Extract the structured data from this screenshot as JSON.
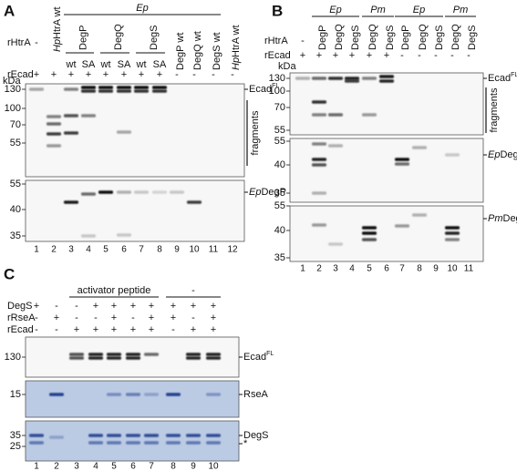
{
  "panels": [
    {
      "label": "A",
      "headers": [
        "Ep"
      ],
      "groups": [
        "DegP",
        "DegQ",
        "DegS"
      ],
      "rows": [
        {
          "name": "rHtrA",
          "values": [
            "-",
            {
              "italic": "Hp",
              "text": "HtrA wt"
            },
            "wt",
            "SA",
            "wt",
            "SA",
            "wt",
            "SA",
            "DegP wt",
            "DegQ wt",
            "DegS wt",
            {
              "italic": "Hp",
              "text": "HtrA wt"
            }
          ]
        },
        {
          "name": "rEcad",
          "values": [
            "+",
            "+",
            "+",
            "+",
            "+",
            "+",
            "+",
            "+",
            "-",
            "-",
            "-",
            "-"
          ]
        }
      ],
      "unit": "kDa",
      "blots": [
        {
          "markers": [
            130,
            100,
            70,
            55
          ],
          "labels": [
            {
              "text": "Ecad",
              "superscript": "FL"
            },
            "fragments"
          ]
        },
        {
          "markers": [
            55,
            40,
            35
          ],
          "labels": [
            {
              "italic": "Ep",
              "text": "DegP"
            }
          ]
        }
      ],
      "lanes": [
        1,
        2,
        3,
        4,
        5,
        6,
        7,
        8,
        9,
        10,
        11,
        12
      ]
    },
    {
      "label": "B",
      "headers": [
        "Ep",
        "Pm",
        "Ep",
        "Pm"
      ],
      "groups": [],
      "rows": [
        {
          "name": "rHtrA",
          "values": [
            "-",
            "DegP",
            "DegQ",
            "DegS",
            "DegQ",
            "DegS",
            "DegP",
            "DegQ",
            "DegS",
            "DegQ",
            "DegS"
          ]
        },
        {
          "name": "rEcad",
          "values": [
            "+",
            "+",
            "+",
            "+",
            "+",
            "+",
            "-",
            "-",
            "-",
            "-",
            "-"
          ]
        }
      ],
      "unit": "kDa",
      "blots": [
        {
          "markers": [
            130,
            100,
            70,
            55
          ],
          "labels": [
            {
              "text": "Ecad",
              "superscript": "FL"
            },
            "fragments"
          ]
        },
        {
          "markers": [
            55,
            40,
            35
          ],
          "labels": [
            {
              "italic": "Ep",
              "text": "DegP"
            }
          ]
        },
        {
          "markers": [
            55,
            40,
            35
          ],
          "labels": [
            {
              "italic": "Pm",
              "text": "DegQ"
            }
          ]
        }
      ],
      "lanes": [
        1,
        2,
        3,
        4,
        5,
        6,
        7,
        8,
        9,
        10,
        11
      ]
    },
    {
      "label": "C",
      "headers": [
        "activator peptide",
        "-"
      ],
      "groups": [],
      "rows": [
        {
          "name": "DegS",
          "values": [
            "+",
            "-",
            "-",
            "+",
            "+",
            "+",
            "+",
            "+",
            "+",
            "+"
          ]
        },
        {
          "name": "rRseA",
          "values": [
            "-",
            "+",
            "-",
            "-",
            "+",
            "-",
            "+",
            "+",
            "-",
            "+"
          ]
        },
        {
          "name": "rEcad",
          "values": [
            "-",
            "-",
            "+",
            "+",
            "+",
            "+",
            "+",
            "-",
            "+",
            "+"
          ]
        }
      ],
      "blots": [
        {
          "markers": [
            130
          ],
          "labels": [
            {
              "text": "Ecad",
              "superscript": "FL"
            }
          ]
        },
        {
          "markers": [
            15
          ],
          "labels": [
            "RseA"
          ]
        },
        {
          "markers": [
            35,
            25
          ],
          "labels": [
            "DegS",
            "*"
          ]
        }
      ],
      "lanes": [
        1,
        2,
        3,
        4,
        5,
        6,
        7,
        8,
        9,
        10
      ]
    }
  ]
}
